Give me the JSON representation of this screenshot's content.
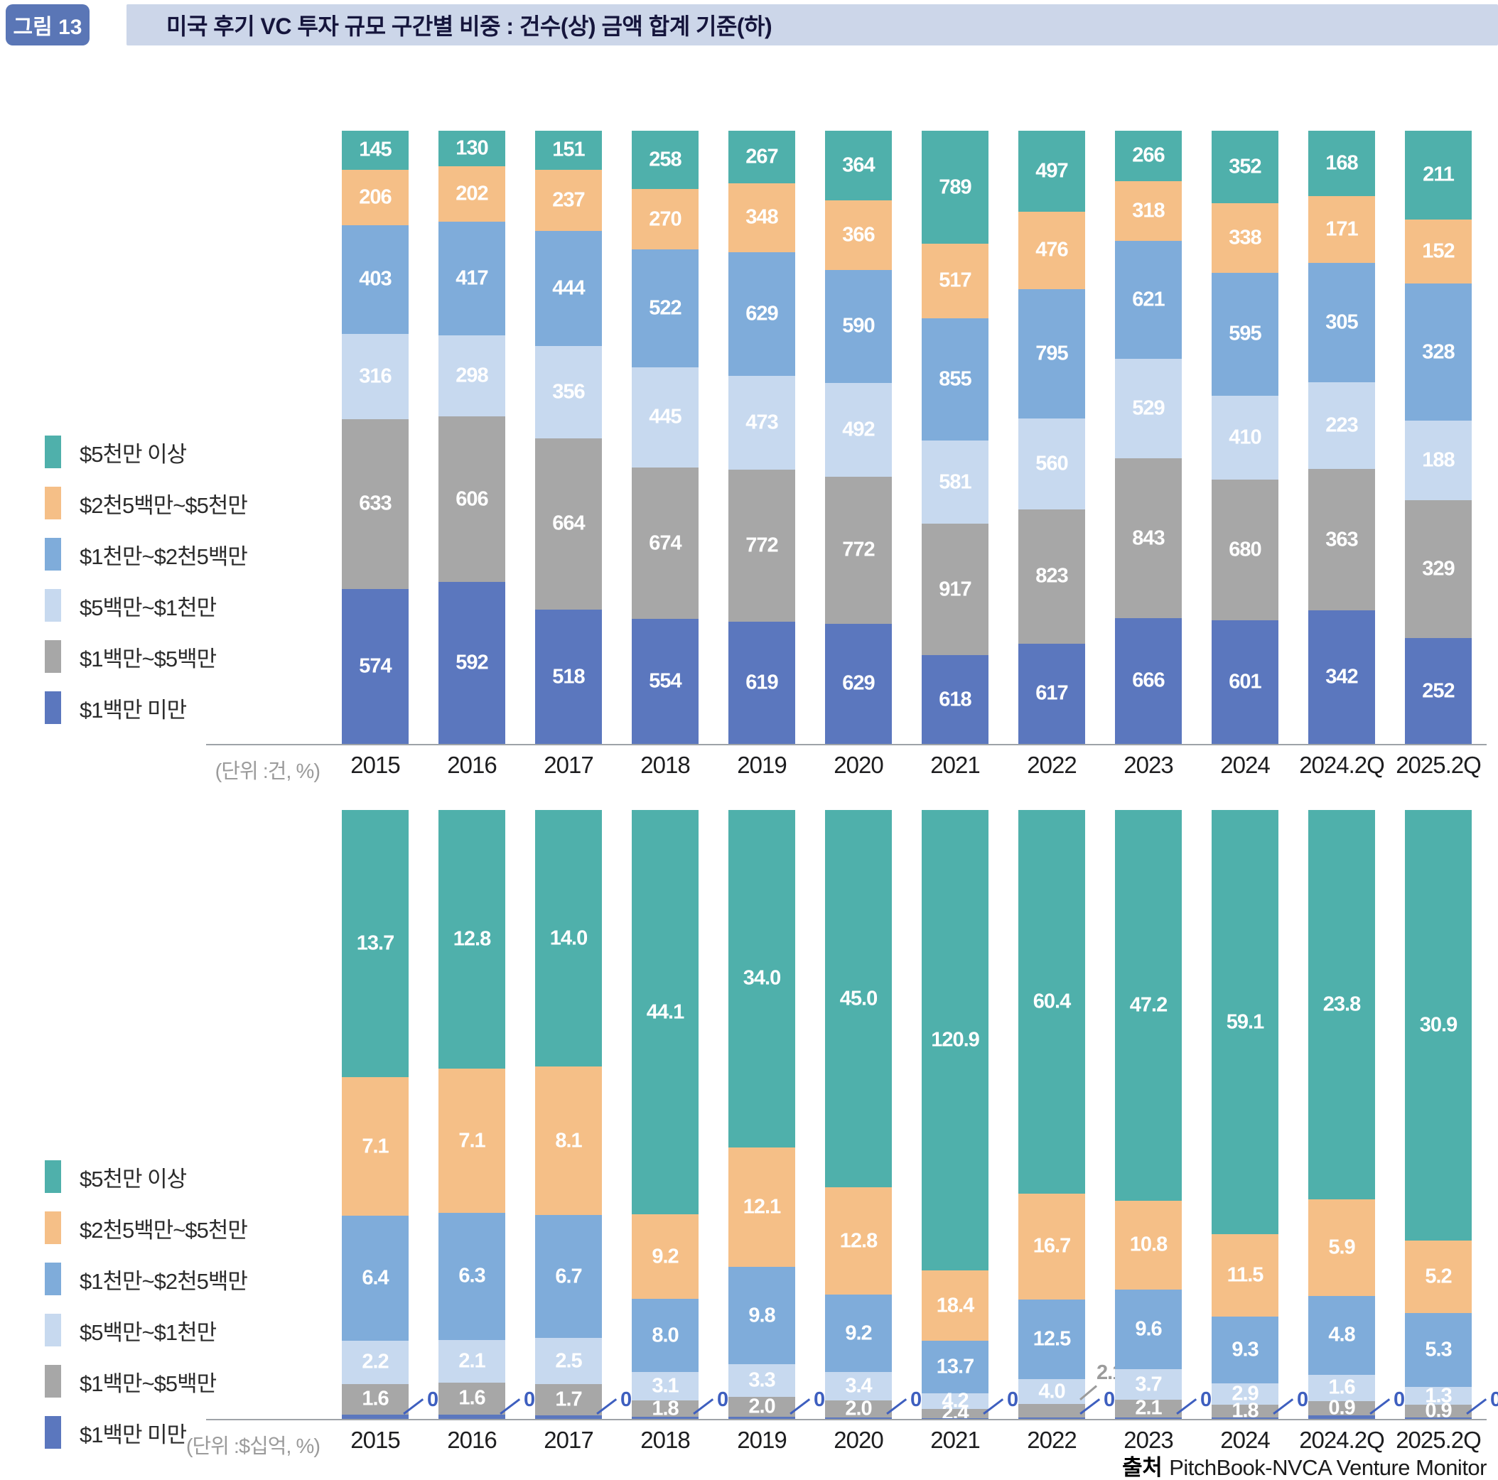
{
  "header": {
    "figure_label": "그림 13",
    "title": "미국 후기 VC 투자 규모 구간별 비중 : 건수(상) 금액 합계 기준(하)"
  },
  "source": {
    "prefix": "출처",
    "text": "PitchBook-NVCA Venture Monitor"
  },
  "colors": {
    "badge": "#5A76B6",
    "title_band": "#CCD6E9",
    "axis": "#9EA3A8",
    "outside_label_blue": "#3E5FBF",
    "outside_label_gray": "#9B9B9B",
    "segment_over_50m": "#4FB0AB",
    "segment_25_50m": "#F5BF87",
    "segment_10_25m": "#7FACDA",
    "segment_5_10m": "#C7D9EF",
    "segment_1_5m": "#A7A7A7",
    "segment_under_1m": "#5B77BE"
  },
  "chart_data": [
    {
      "type": "bar",
      "stacked": true,
      "normalized_to_100pct": true,
      "legend_position": "left",
      "unit_label": "(단위 :건, %)",
      "categories": [
        "2015",
        "2016",
        "2017",
        "2018",
        "2019",
        "2020",
        "2021",
        "2022",
        "2023",
        "2024",
        "2024.2Q",
        "2025.2Q"
      ],
      "series": [
        {
          "key": "over-50m",
          "name": "$5천만 이상",
          "color": "#4FB0AB",
          "values": [
            "145",
            "130",
            "151",
            "258",
            "267",
            "364",
            "789",
            "497",
            "266",
            "352",
            "168",
            "211"
          ]
        },
        {
          "key": "25m-50m",
          "name": "$2천5백만~$5천만",
          "color": "#F5BF87",
          "values": [
            "206",
            "202",
            "237",
            "270",
            "348",
            "366",
            "517",
            "476",
            "318",
            "338",
            "171",
            "152"
          ]
        },
        {
          "key": "10m-25m",
          "name": "$1천만~$2천5백만",
          "color": "#7FACDA",
          "values": [
            "403",
            "417",
            "444",
            "522",
            "629",
            "590",
            "855",
            "795",
            "621",
            "595",
            "305",
            "328"
          ]
        },
        {
          "key": "5m-10m",
          "name": "$5백만~$1천만",
          "color": "#C7D9EF",
          "values": [
            "316",
            "298",
            "356",
            "445",
            "473",
            "492",
            "581",
            "560",
            "529",
            "410",
            "223",
            "188"
          ]
        },
        {
          "key": "1m-5m",
          "name": "$1백만~$5백만",
          "color": "#A7A7A7",
          "values": [
            "633",
            "606",
            "664",
            "674",
            "772",
            "772",
            "917",
            "823",
            "843",
            "680",
            "363",
            "329"
          ]
        },
        {
          "key": "under-1m",
          "name": "$1백만 미만",
          "color": "#5B77BE",
          "values": [
            "574",
            "592",
            "518",
            "554",
            "619",
            "629",
            "618",
            "617",
            "666",
            "601",
            "342",
            "252"
          ]
        }
      ]
    },
    {
      "type": "bar",
      "stacked": true,
      "normalized_to_100pct": true,
      "legend_position": "left",
      "unit_label": "(단위 :$십억, %)",
      "categories": [
        "2015",
        "2016",
        "2017",
        "2018",
        "2019",
        "2020",
        "2021",
        "2022",
        "2023",
        "2024",
        "2024.2Q",
        "2025.2Q"
      ],
      "series": [
        {
          "key": "over-50m",
          "name": "$5천만 이상",
          "color": "#4FB0AB",
          "values": [
            "13.7",
            "12.8",
            "14.0",
            "44.1",
            "34.0",
            "45.0",
            "120.9",
            "60.4",
            "47.2",
            "59.1",
            "23.8",
            "30.9"
          ]
        },
        {
          "key": "25m-50m",
          "name": "$2천5백만~$5천만",
          "color": "#F5BF87",
          "values": [
            "7.1",
            "7.1",
            "8.1",
            "9.2",
            "12.1",
            "12.8",
            "18.4",
            "16.7",
            "10.8",
            "11.5",
            "5.9",
            "5.2"
          ]
        },
        {
          "key": "10m-25m",
          "name": "$1천만~$2천5백만",
          "color": "#7FACDA",
          "values": [
            "6.4",
            "6.3",
            "6.7",
            "8.0",
            "9.8",
            "9.2",
            "13.7",
            "12.5",
            "9.6",
            "9.3",
            "4.8",
            "5.3"
          ]
        },
        {
          "key": "5m-10m",
          "name": "$5백만~$1천만",
          "color": "#C7D9EF",
          "values": [
            "2.2",
            "2.1",
            "2.5",
            "3.1",
            "3.3",
            "3.4",
            "4.2",
            "4.0",
            "3.7",
            "2.9",
            "1.6",
            "1.3"
          ]
        },
        {
          "key": "1m-5m",
          "name": "$1백만~$5백만",
          "color": "#A7A7A7",
          "values": [
            "1.6",
            "1.6",
            "1.7",
            "1.8",
            "2.0",
            "2.0",
            "2.4",
            "2.1",
            "2.1",
            "1.8",
            "0.9",
            "0.9"
          ],
          "label_outside": [
            7
          ]
        },
        {
          "key": "under-1m",
          "name": "$1백만 미만",
          "color": "#5B77BE",
          "values": [
            "0.2",
            "0.2",
            "0.2",
            "0.2",
            "0.2",
            "0.2",
            "0.2",
            "0.2",
            "0.2",
            "0.2",
            "0.2",
            "0.1"
          ],
          "label_outside": "all"
        }
      ]
    }
  ]
}
